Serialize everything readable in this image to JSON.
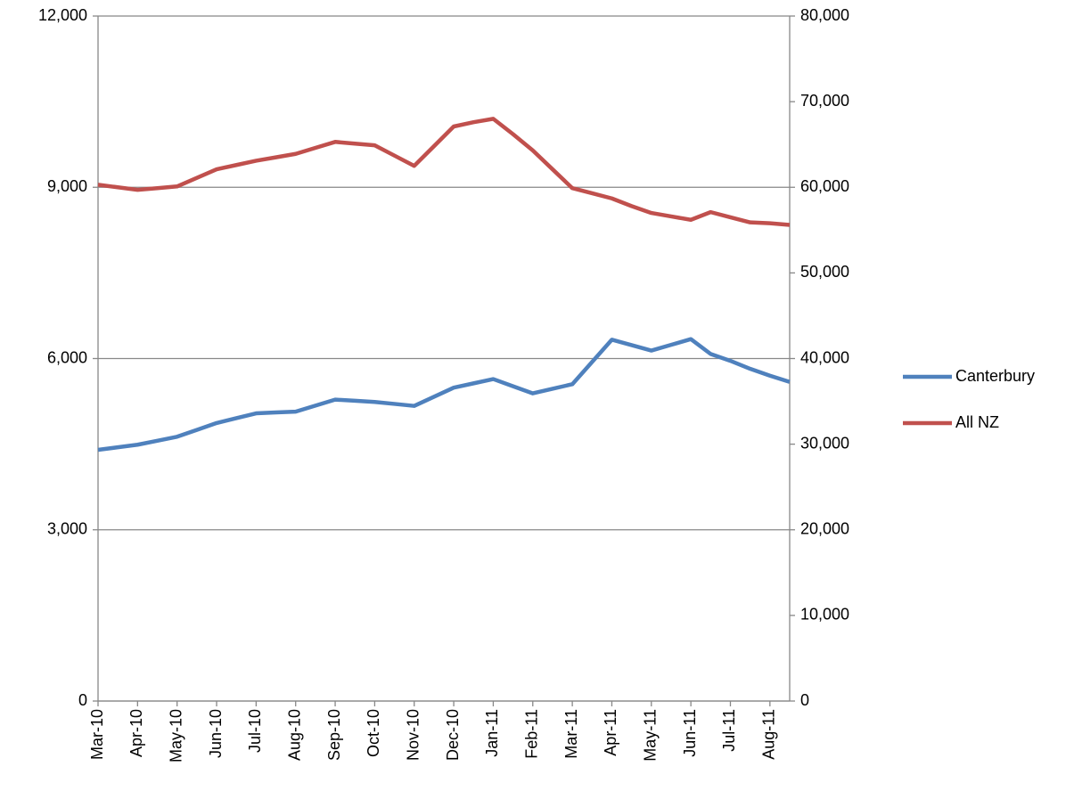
{
  "chart_data": {
    "type": "line",
    "categories": [
      "Mar-10",
      null,
      "Apr-10",
      null,
      "May-10",
      null,
      "Jun-10",
      null,
      "Jul-10",
      null,
      "Aug-10",
      null,
      "Sep-10",
      null,
      "Oct-10",
      null,
      "Nov-10",
      null,
      "Dec-10",
      null,
      "Jan-11",
      null,
      "Feb-11",
      null,
      "Mar-11",
      null,
      "Apr-11",
      null,
      "May-11",
      null,
      "Jun-11",
      null,
      "Jul-11",
      null,
      "Aug-11",
      null
    ],
    "series": [
      {
        "name": "Canterbury",
        "color": "#4f81bd",
        "values": [
          4400,
          4445,
          4490,
          4560,
          4630,
          4750,
          4870,
          4955,
          5040,
          5055,
          5070,
          5175,
          5280,
          5260,
          5240,
          5205,
          5170,
          5330,
          5490,
          5565,
          5640,
          5515,
          5390,
          5470,
          5550,
          5940,
          6330,
          6235,
          6140,
          6240,
          6340,
          6080,
          5960,
          5820,
          5700,
          5590
        ]
      },
      {
        "name": "All NZ",
        "color": "#c0504d",
        "axis": "y2",
        "values": [
          60300,
          60000,
          59700,
          59900,
          60100,
          61100,
          62100,
          62600,
          63100,
          63500,
          63900,
          64600,
          65300,
          65100,
          64900,
          63700,
          62500,
          64800,
          67100,
          67600,
          68000,
          66200,
          64300,
          62100,
          59900,
          59300,
          58700,
          57800,
          57000,
          56600,
          56200,
          57100,
          56500,
          55900,
          55800,
          55600
        ]
      }
    ],
    "ylim": [
      0,
      12000
    ],
    "yticks": [
      0,
      {
        "value": 3000,
        "label": "3,000"
      },
      {
        "value": 6000,
        "label": "6,000"
      },
      {
        "value": 9000,
        "label": "9,000"
      },
      {
        "value": 12000,
        "label": "12,000"
      }
    ],
    "y2lim": [
      0,
      80000
    ],
    "y2ticks": [
      0,
      {
        "value": 10000,
        "label": "10,000"
      },
      {
        "value": 20000,
        "label": "20,000"
      },
      {
        "value": 30000,
        "label": "30,000"
      },
      {
        "value": 40000,
        "label": "40,000"
      },
      {
        "value": 50000,
        "label": "50,000"
      },
      {
        "value": 60000,
        "label": "60,000"
      },
      {
        "value": 70000,
        "label": "70,000"
      },
      {
        "value": 80000,
        "label": "80,000"
      }
    ],
    "grid": true,
    "legend": "right"
  }
}
